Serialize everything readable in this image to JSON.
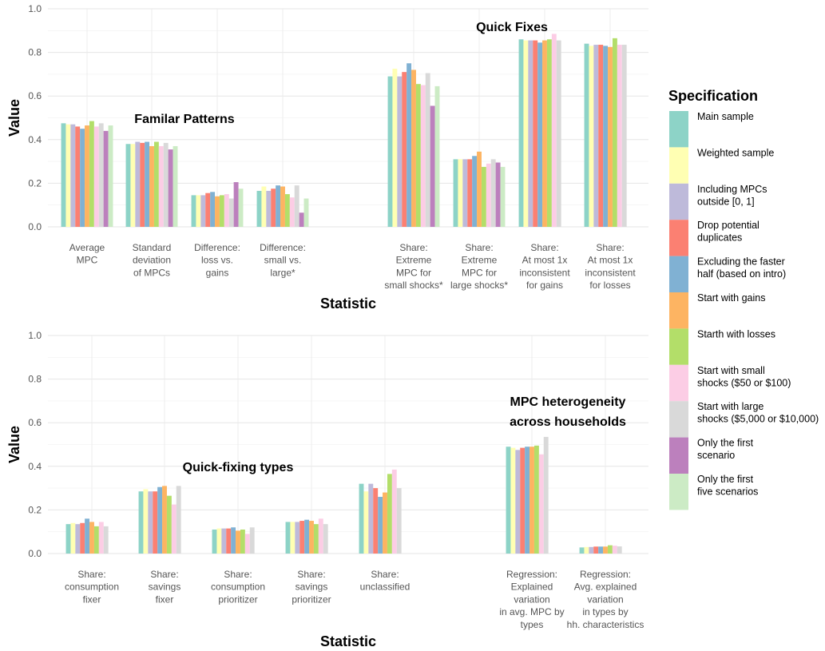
{
  "legend": {
    "title": "Specification",
    "entries": [
      {
        "lines": [
          "Main sample"
        ],
        "color": "#8DD3C7"
      },
      {
        "lines": [
          "Weighted sample"
        ],
        "color": "#FFFFB3"
      },
      {
        "lines": [
          "Including MPCs",
          "outside [0, 1]"
        ],
        "color": "#BEBADA"
      },
      {
        "lines": [
          "Drop potential",
          "duplicates"
        ],
        "color": "#FB8072"
      },
      {
        "lines": [
          "Excluding the faster",
          "half (based on intro)"
        ],
        "color": "#80B1D3"
      },
      {
        "lines": [
          "Start with gains"
        ],
        "color": "#FDB462"
      },
      {
        "lines": [
          "Starth with losses"
        ],
        "color": "#B3DE69"
      },
      {
        "lines": [
          "Start with small",
          "shocks ($50 or $100)"
        ],
        "color": "#FCCDE5"
      },
      {
        "lines": [
          "Start with large",
          "shocks ($5,000 or $10,000)"
        ],
        "color": "#D9D9D9"
      },
      {
        "lines": [
          "Only the first",
          " scenario"
        ],
        "color": "#BC80BD"
      },
      {
        "lines": [
          "Only the first",
          "five scenarios"
        ],
        "color": "#CCEBC5"
      }
    ]
  },
  "chart_data": [
    {
      "type": "bar",
      "xlabel": "Statistic",
      "ylabel": "Value",
      "ylim": [
        0,
        1
      ],
      "yticks": [
        "0.0",
        "0.2",
        "0.4",
        "0.6",
        "0.8",
        "1.0"
      ],
      "grid": true,
      "annotations": [
        {
          "lines": [
            "Familar Patterns"
          ]
        },
        {
          "lines": [
            "Quick Fixes"
          ]
        }
      ],
      "categories": [
        {
          "label": [
            "Average",
            "MPC"
          ],
          "values": [
            0.475,
            0.47,
            0.47,
            0.46,
            0.45,
            0.465,
            0.485,
            0.46,
            0.475,
            0.44,
            0.465
          ]
        },
        {
          "label": [
            "Standard",
            "deviation",
            "of MPCs"
          ],
          "values": [
            0.38,
            0.38,
            0.39,
            0.385,
            0.39,
            0.37,
            0.39,
            0.37,
            0.385,
            0.355,
            0.37
          ]
        },
        {
          "label": [
            "Difference:",
            "loss vs.",
            "gains"
          ],
          "values": [
            0.145,
            0.145,
            0.145,
            0.155,
            0.16,
            0.14,
            0.145,
            0.15,
            0.13,
            0.205,
            0.175
          ]
        },
        {
          "label": [
            "Difference:",
            "small vs.",
            "large*"
          ],
          "values": [
            0.165,
            0.185,
            0.165,
            0.175,
            0.19,
            0.185,
            0.15,
            0.135,
            0.19,
            0.065,
            0.13
          ]
        },
        {
          "label": [
            "Share:",
            "Extreme",
            "MPC for",
            "small shocks*"
          ],
          "values": [
            0.69,
            0.725,
            0.69,
            0.71,
            0.75,
            0.72,
            0.655,
            0.65,
            0.705,
            0.555,
            0.645
          ]
        },
        {
          "label": [
            "Share:",
            "Extreme",
            "MPC for",
            "large shocks*"
          ],
          "values": [
            0.31,
            0.31,
            0.31,
            0.31,
            0.325,
            0.345,
            0.275,
            0.29,
            0.31,
            0.295,
            0.275
          ]
        },
        {
          "label": [
            "Share:",
            "At most 1x",
            "inconsistent",
            "for gains"
          ],
          "values": [
            0.86,
            0.855,
            0.855,
            0.855,
            0.845,
            0.855,
            0.86,
            0.885,
            0.855,
            null,
            null
          ]
        },
        {
          "label": [
            "Share:",
            "At most 1x",
            "inconsistent",
            "for losses"
          ],
          "values": [
            0.84,
            0.83,
            0.835,
            0.835,
            0.83,
            0.825,
            0.865,
            0.835,
            0.835,
            null,
            null
          ]
        }
      ]
    },
    {
      "type": "bar",
      "xlabel": "Statistic",
      "ylabel": "Value",
      "ylim": [
        0,
        1
      ],
      "yticks": [
        "0.0",
        "0.2",
        "0.4",
        "0.6",
        "0.8",
        "1.0"
      ],
      "grid": true,
      "annotations": [
        {
          "lines": [
            "Quick-fixing types"
          ]
        },
        {
          "lines": [
            "MPC heterogeneity",
            "across households"
          ]
        }
      ],
      "categories": [
        {
          "label": [
            "Share:",
            "consumption",
            "fixer"
          ],
          "values": [
            0.135,
            0.14,
            0.135,
            0.14,
            0.16,
            0.145,
            0.125,
            0.145,
            0.125,
            null,
            null
          ]
        },
        {
          "label": [
            "Share:",
            "savings",
            "fixer"
          ],
          "values": [
            0.285,
            0.295,
            0.285,
            0.285,
            0.305,
            0.31,
            0.265,
            0.225,
            0.31,
            null,
            null
          ]
        },
        {
          "label": [
            "Share:",
            "consumption",
            "prioritizer"
          ],
          "values": [
            0.11,
            0.115,
            0.115,
            0.115,
            0.12,
            0.105,
            0.11,
            0.09,
            0.12,
            null,
            null
          ]
        },
        {
          "label": [
            "Share:",
            "savings",
            "prioritizer"
          ],
          "values": [
            0.145,
            0.145,
            0.145,
            0.15,
            0.155,
            0.15,
            0.135,
            0.16,
            0.135,
            null,
            null
          ]
        },
        {
          "label": [
            "Share:",
            "unclassified"
          ],
          "values": [
            0.32,
            0.285,
            0.32,
            0.3,
            0.26,
            0.28,
            0.365,
            0.385,
            0.3,
            null,
            null
          ]
        },
        {
          "label": [
            "Regression:",
            "Explained",
            "variation",
            "in avg. MPC by",
            "types"
          ],
          "values": [
            0.49,
            0.485,
            0.475,
            0.485,
            0.49,
            0.49,
            0.495,
            0.455,
            0.535,
            null,
            null
          ]
        },
        {
          "label": [
            "Regression:",
            "Avg. explained",
            "variation",
            "in types by",
            "hh. characteristics"
          ],
          "values": [
            0.028,
            0.03,
            0.03,
            0.032,
            0.032,
            0.032,
            0.038,
            0.036,
            0.033,
            null,
            null
          ]
        }
      ]
    }
  ]
}
